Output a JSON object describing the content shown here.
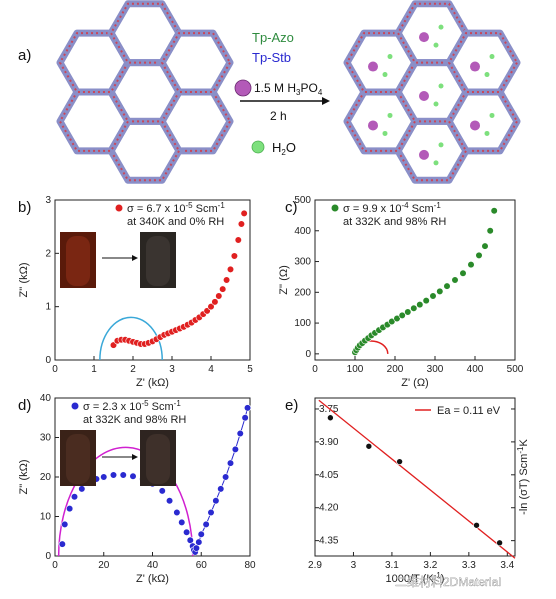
{
  "panel_labels": {
    "a": "a)",
    "b": "b)",
    "c": "c)",
    "d": "d)",
    "e": "e)"
  },
  "scheme": {
    "reagent1": "Tp-Azo",
    "reagent2": "Tp-Stb",
    "acid": "1.5 M H",
    "acid_sub1": "3",
    "acid_mid": "PO",
    "acid_sub2": "4",
    "time": "2 h",
    "water": "H",
    "water_sub": "2",
    "water_end": "O",
    "colors": {
      "azo": "#2e8b3e",
      "stb": "#2a2ad0",
      "water": "#7de07d",
      "acid": "#b35ab8"
    }
  },
  "watermark": "二维材料2DMaterial",
  "chart_data": [
    {
      "panel": "b",
      "type": "scatter",
      "xlabel": "Z' (kΩ)",
      "ylabel": "Z'' (kΩ)",
      "xlim": [
        0,
        5
      ],
      "ylim": [
        0,
        3
      ],
      "xticks": [
        0,
        1,
        2,
        3,
        4,
        5
      ],
      "yticks": [
        0,
        1,
        2,
        3
      ],
      "legend_line1": "σ = 6.7 x 10",
      "legend_exp": "-5",
      "legend_unit": " Scm",
      "legend_unit_exp": "-1",
      "legend_line2": "at 340K and 0% RH",
      "marker_color": "#e02020",
      "fit_color": "#3aa8d8",
      "semicircle": {
        "center": 1.95,
        "radius": 0.8
      },
      "points": [
        [
          1.5,
          0.28
        ],
        [
          1.6,
          0.36
        ],
        [
          1.7,
          0.38
        ],
        [
          1.8,
          0.38
        ],
        [
          1.9,
          0.36
        ],
        [
          2.0,
          0.34
        ],
        [
          2.1,
          0.32
        ],
        [
          2.2,
          0.3
        ],
        [
          2.3,
          0.3
        ],
        [
          2.4,
          0.32
        ],
        [
          2.5,
          0.35
        ],
        [
          2.6,
          0.39
        ],
        [
          2.7,
          0.43
        ],
        [
          2.8,
          0.47
        ],
        [
          2.9,
          0.5
        ],
        [
          3.0,
          0.53
        ],
        [
          3.1,
          0.56
        ],
        [
          3.2,
          0.59
        ],
        [
          3.3,
          0.62
        ],
        [
          3.4,
          0.66
        ],
        [
          3.5,
          0.7
        ],
        [
          3.6,
          0.75
        ],
        [
          3.7,
          0.8
        ],
        [
          3.8,
          0.86
        ],
        [
          3.9,
          0.92
        ],
        [
          4.0,
          1.0
        ],
        [
          4.1,
          1.09
        ],
        [
          4.2,
          1.2
        ],
        [
          4.3,
          1.33
        ],
        [
          4.4,
          1.5
        ],
        [
          4.5,
          1.7
        ],
        [
          4.6,
          1.95
        ],
        [
          4.7,
          2.25
        ],
        [
          4.78,
          2.55
        ],
        [
          4.85,
          2.75
        ]
      ]
    },
    {
      "panel": "c",
      "type": "scatter",
      "xlabel": "Z' (Ω)",
      "ylabel": "Z'' (Ω)",
      "xlim": [
        0,
        500
      ],
      "ylim": [
        -20,
        500
      ],
      "xticks": [
        0,
        100,
        200,
        300,
        400,
        500
      ],
      "yticks": [
        0,
        100,
        200,
        300,
        400,
        500
      ],
      "legend_line1": "σ = 9.9 x 10",
      "legend_exp": "-4",
      "legend_unit": " Scm",
      "legend_unit_exp": "-1",
      "legend_line2": "at 332K and 98% RH",
      "marker_color": "#2a8a2a",
      "fit_color": "#e02020",
      "semicircle": {
        "center": 140,
        "radius": 42
      },
      "points": [
        [
          100,
          5
        ],
        [
          103,
          12
        ],
        [
          107,
          20
        ],
        [
          112,
          28
        ],
        [
          118,
          35
        ],
        [
          125,
          43
        ],
        [
          133,
          51
        ],
        [
          141,
          60
        ],
        [
          150,
          68
        ],
        [
          160,
          77
        ],
        [
          170,
          86
        ],
        [
          181,
          95
        ],
        [
          192,
          105
        ],
        [
          205,
          115
        ],
        [
          218,
          125
        ],
        [
          232,
          136
        ],
        [
          247,
          148
        ],
        [
          262,
          160
        ],
        [
          278,
          173
        ],
        [
          295,
          188
        ],
        [
          312,
          203
        ],
        [
          330,
          220
        ],
        [
          350,
          240
        ],
        [
          370,
          262
        ],
        [
          390,
          290
        ],
        [
          410,
          320
        ],
        [
          425,
          350
        ],
        [
          438,
          400
        ],
        [
          448,
          465
        ]
      ]
    },
    {
      "panel": "d",
      "type": "scatter",
      "xlabel": "Z' (kΩ)",
      "ylabel": "Z'' (kΩ)",
      "xlim": [
        0,
        80
      ],
      "ylim": [
        0,
        40
      ],
      "xticks": [
        0,
        20,
        40,
        60,
        80
      ],
      "yticks": [
        0,
        10,
        20,
        30,
        40
      ],
      "legend_line1": "σ = 2.3 x 10",
      "legend_exp": "-5",
      "legend_unit": " Scm",
      "legend_unit_exp": "-1",
      "legend_line2": "at 332K and 98% RH",
      "marker_color": "#2a2ad0",
      "fit_color": "#d020d0",
      "semicircle": {
        "center": 29,
        "radius": 27.5
      },
      "points": [
        [
          3,
          3
        ],
        [
          4,
          8
        ],
        [
          6,
          12
        ],
        [
          8,
          15
        ],
        [
          11,
          17
        ],
        [
          14,
          18.5
        ],
        [
          17,
          19.5
        ],
        [
          20,
          20
        ],
        [
          24,
          20.5
        ],
        [
          28,
          20.5
        ],
        [
          32,
          20.2
        ],
        [
          36,
          19.5
        ],
        [
          40,
          18.3
        ],
        [
          44,
          16.5
        ],
        [
          47,
          14
        ],
        [
          50,
          11
        ],
        [
          52,
          8.5
        ],
        [
          54,
          6
        ],
        [
          55.5,
          4
        ],
        [
          56.5,
          2.5
        ],
        [
          57,
          1.5
        ],
        [
          57.5,
          1
        ],
        [
          58,
          2
        ],
        [
          59,
          3.5
        ],
        [
          60,
          5.5
        ],
        [
          62,
          8
        ],
        [
          64,
          11
        ],
        [
          66,
          14
        ],
        [
          68,
          17
        ],
        [
          70,
          20
        ],
        [
          72,
          23.5
        ],
        [
          74,
          27
        ],
        [
          76,
          31
        ],
        [
          78,
          35
        ],
        [
          79,
          37.5
        ]
      ]
    },
    {
      "panel": "e",
      "type": "scatter",
      "xlabel": "1000/T (K",
      "xlabel_exp": "-1",
      "xlabel_end": ")",
      "ylabel": "-ln (σT) Scm",
      "ylabel_exp": "-1",
      "ylabel_end": "K",
      "xlim": [
        2.9,
        3.42
      ],
      "ylim": [
        3.7,
        4.42
      ],
      "y_inverted": true,
      "xticks": [
        2.9,
        3.0,
        3.1,
        3.2,
        3.3,
        3.4
      ],
      "yticks": [
        3.75,
        3.9,
        4.05,
        4.2,
        4.35
      ],
      "legend": "Ea = 0.11 eV",
      "marker_color": "#111111",
      "fit_color": "#e02020",
      "fit_line": [
        [
          2.91,
          3.71
        ],
        [
          3.42,
          4.43
        ]
      ],
      "points": [
        [
          2.94,
          3.79
        ],
        [
          3.04,
          3.92
        ],
        [
          3.12,
          3.99
        ],
        [
          3.32,
          4.28
        ],
        [
          3.38,
          4.36
        ]
      ]
    }
  ]
}
